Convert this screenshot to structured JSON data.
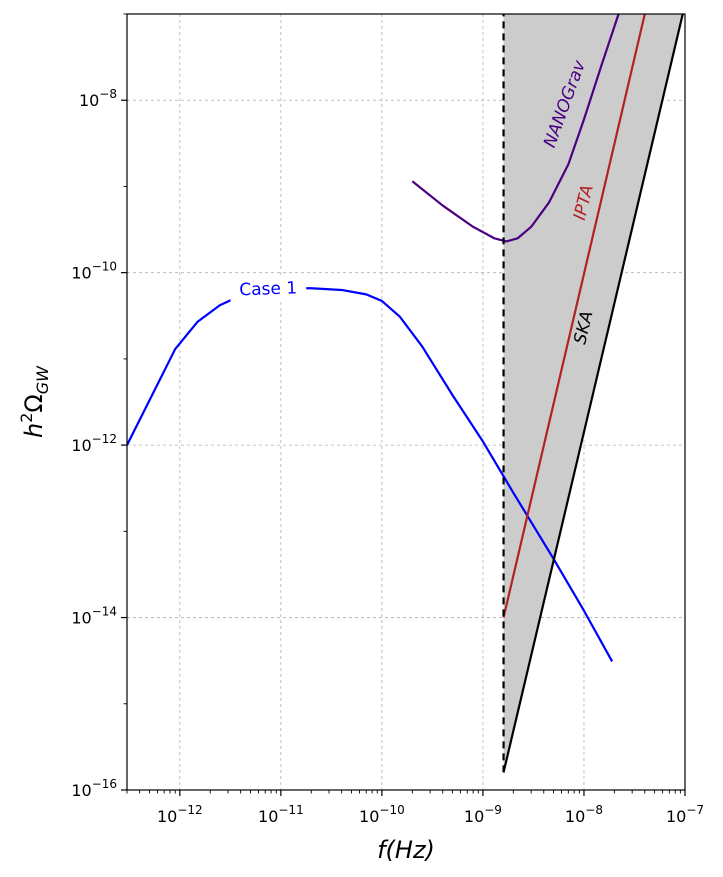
{
  "chart_data": {
    "type": "line",
    "title": "",
    "xlabel_main": "f(Hz)",
    "ylabel_main": "h",
    "ylabel_sup": "2",
    "ylabel_omega": "Ω",
    "ylabel_sub": "GW",
    "xscale": "log",
    "yscale": "log",
    "xlim": [
      3e-13,
      1e-07
    ],
    "ylim": [
      1e-16,
      1e-07
    ],
    "grid": true,
    "xticks": [
      {
        "value": 1e-12,
        "base": "10",
        "exp": "−12"
      },
      {
        "value": 1e-11,
        "base": "10",
        "exp": "−11"
      },
      {
        "value": 1e-10,
        "base": "10",
        "exp": "−10"
      },
      {
        "value": 1e-09,
        "base": "10",
        "exp": "−9"
      },
      {
        "value": 1e-08,
        "base": "10",
        "exp": "−8"
      },
      {
        "value": 1e-07,
        "base": "10",
        "exp": "−7"
      }
    ],
    "yticks": [
      {
        "value": 1e-16,
        "base": "10",
        "exp": "−16"
      },
      {
        "value": 1e-14,
        "base": "10",
        "exp": "−14"
      },
      {
        "value": 1e-12,
        "base": "10",
        "exp": "−12"
      },
      {
        "value": 1e-10,
        "base": "10",
        "exp": "−10"
      },
      {
        "value": 1e-08,
        "base": "10",
        "exp": "−8"
      }
    ],
    "series": [
      {
        "name": "Case 1",
        "color": "#0000ff",
        "x": [
          3e-13,
          9e-13,
          1.5e-12,
          2.5e-12,
          4e-12,
          7e-12,
          1.2e-11,
          2e-11,
          4e-11,
          7e-11,
          1e-10,
          1.5e-10,
          2.5e-10,
          5e-10,
          1e-09,
          2e-09,
          5e-09,
          1e-08,
          1.9e-08
        ],
        "y": [
          1e-12,
          1.3e-11,
          2.7e-11,
          4.2e-11,
          5.4e-11,
          6.2e-11,
          6.6e-11,
          6.6e-11,
          6.3e-11,
          5.6e-11,
          4.7e-11,
          3.1e-11,
          1.4e-11,
          3.8e-12,
          1.1e-12,
          2.8e-13,
          4.8e-14,
          1.2e-14,
          3.1e-15
        ]
      },
      {
        "name": "NANOGrav",
        "color": "#4b0082",
        "x": [
          2e-10,
          4e-10,
          8e-10,
          1.3e-09,
          1.7e-09,
          2.2e-09,
          3e-09,
          4.5e-09,
          7e-09,
          1e-08,
          1.5e-08,
          2.2e-08
        ],
        "y": [
          1.15e-09,
          6e-10,
          3.4e-10,
          2.5e-10,
          2.3e-10,
          2.5e-10,
          3.4e-10,
          6.5e-10,
          1.8e-09,
          6e-09,
          2.6e-08,
          1e-07
        ]
      },
      {
        "name": "IPTA",
        "color": "#b22222",
        "x": [
          1.6e-09,
          4e-08
        ],
        "y": [
          1e-14,
          1e-07
        ]
      },
      {
        "name": "SKA",
        "color": "#000000",
        "x": [
          1.6e-09,
          9.5e-08
        ],
        "y": [
          1.6e-16,
          1e-07
        ]
      }
    ],
    "vline": {
      "x": 1.6e-09,
      "color": "#000000",
      "style": "dashed",
      "y_from": 1.6e-16,
      "y_to": 1e-07
    },
    "fills": [
      {
        "name": "IPTA-region",
        "color": "#c4a5a7",
        "x": [
          1.6e-09,
          4e-08
        ],
        "y_low": [
          1e-14,
          1e-07
        ]
      },
      {
        "name": "SKA-region",
        "color": "#cccccc",
        "x": [
          1.6e-09,
          9.5e-08
        ],
        "y_low": [
          1.6e-16,
          1e-07
        ]
      }
    ],
    "annotations": [
      {
        "text": "Case 1",
        "color": "#0000ff",
        "x": 7.5e-12,
        "y": 6.4e-11,
        "rotation": -2
      },
      {
        "text": "NANOGrav",
        "color": "#4b0082",
        "x": 6.5e-09,
        "y": 9e-09,
        "rotation": -70
      },
      {
        "text": "IPTA",
        "color": "#b22222",
        "x": 1e-08,
        "y": 6.5e-10,
        "rotation": -76
      },
      {
        "text": "SKA",
        "color": "#000000",
        "x": 1e-08,
        "y": 2.3e-11,
        "rotation": -77
      }
    ]
  }
}
